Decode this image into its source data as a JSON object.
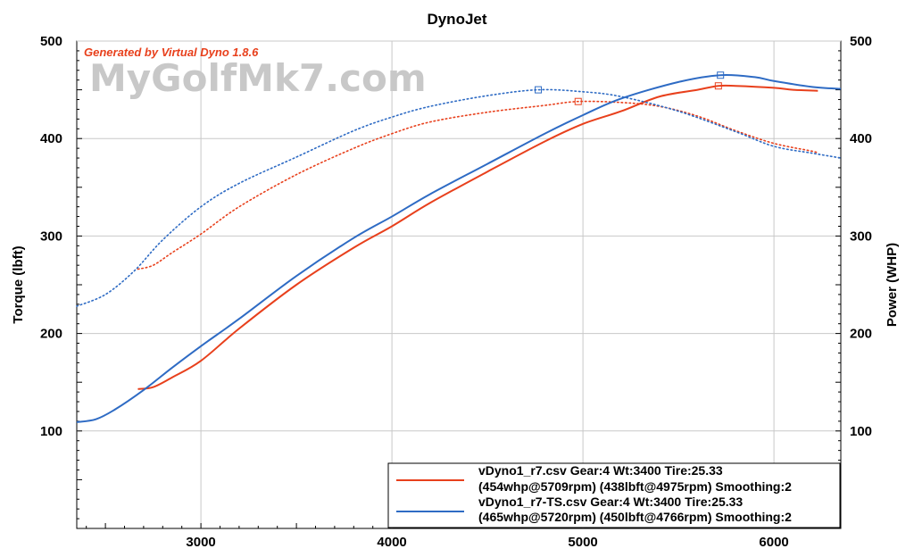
{
  "watermark": "MyGolfMk7.com",
  "generator": "Generated by Virtual Dyno 1.8.6",
  "chart_data": {
    "type": "line",
    "title": "DynoJet",
    "xlabel": "",
    "ylabel_left": "Torque (lbft)",
    "ylabel_right": "Power (WHP)",
    "xlim": [
      2350,
      6350
    ],
    "ylim": [
      0,
      500
    ],
    "y2lim": [
      0,
      500
    ],
    "x_ticks": [
      3000,
      4000,
      5000,
      6000
    ],
    "y_ticks": [
      100,
      200,
      300,
      400,
      500
    ],
    "y2_ticks": [
      100,
      200,
      300,
      400,
      500
    ],
    "grid": true,
    "legend_position": "bottom-right",
    "series": [
      {
        "name": "vDyno1_r7.csv Gear:4 Wt:3400 Tire:25.33",
        "legend_line2": "(454whp@5709rpm) (438lbft@4975rpm) Smoothing:2",
        "color": "#e8401c",
        "power": {
          "axis": "right",
          "style": "solid",
          "x": [
            2670,
            2750,
            2850,
            3000,
            3200,
            3500,
            3800,
            4000,
            4200,
            4500,
            4800,
            5000,
            5200,
            5400,
            5600,
            5709,
            5800,
            6000,
            6100,
            6230
          ],
          "y": [
            143,
            145,
            155,
            172,
            205,
            250,
            288,
            310,
            334,
            366,
            397,
            415,
            428,
            443,
            450,
            454,
            454,
            452,
            450,
            449
          ]
        },
        "torque": {
          "axis": "left",
          "style": "dotted",
          "x": [
            2670,
            2750,
            2850,
            3000,
            3200,
            3500,
            3800,
            4000,
            4200,
            4500,
            4800,
            4975,
            5200,
            5400,
            5600,
            5800,
            6000,
            6200,
            6230
          ],
          "y": [
            266,
            270,
            283,
            302,
            330,
            363,
            390,
            405,
            417,
            427,
            434,
            438,
            437,
            433,
            423,
            408,
            395,
            387,
            385
          ]
        },
        "markers": [
          {
            "x": 4975,
            "y": 438
          },
          {
            "x": 5709,
            "y": 454
          }
        ]
      },
      {
        "name": "vDyno1_r7-TS.csv Gear:4 Wt:3400 Tire:25.33",
        "legend_line2": "(465whp@5720rpm) (450lbft@4766rpm) Smoothing:2",
        "color": "#2e6bc4",
        "power": {
          "axis": "right",
          "style": "solid",
          "x": [
            2350,
            2450,
            2550,
            2700,
            2850,
            3000,
            3200,
            3500,
            3800,
            4000,
            4200,
            4500,
            4800,
            5000,
            5200,
            5500,
            5720,
            5900,
            6000,
            6200,
            6350
          ],
          "y": [
            109,
            112,
            122,
            142,
            165,
            187,
            215,
            259,
            298,
            320,
            343,
            374,
            405,
            424,
            441,
            458,
            465,
            463,
            459,
            453,
            451
          ]
        },
        "torque": {
          "axis": "left",
          "style": "dotted",
          "x": [
            2350,
            2500,
            2650,
            2800,
            3000,
            3200,
            3500,
            3800,
            4000,
            4200,
            4500,
            4766,
            5000,
            5200,
            5500,
            5800,
            6000,
            6200,
            6350
          ],
          "y": [
            228,
            240,
            264,
            296,
            330,
            354,
            381,
            408,
            422,
            433,
            444,
            450,
            448,
            443,
            428,
            407,
            392,
            385,
            380
          ]
        },
        "markers": [
          {
            "x": 4766,
            "y": 450
          },
          {
            "x": 5720,
            "y": 465
          }
        ]
      }
    ]
  }
}
